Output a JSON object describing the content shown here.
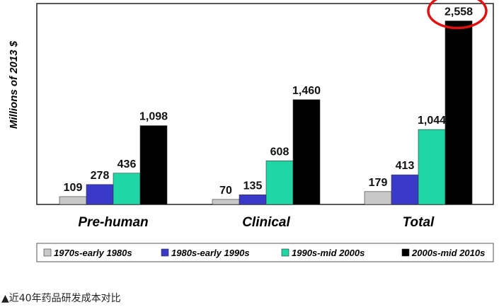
{
  "chart_data": {
    "type": "bar",
    "ylabel": "Millions of 2013 $",
    "categories": [
      "Pre-human",
      "Clinical",
      "Total"
    ],
    "series": [
      {
        "name": "1970s-early 1980s",
        "color": "#c8c8c8",
        "values": [
          109,
          70,
          179
        ]
      },
      {
        "name": "1980s-early 1990s",
        "color": "#3a3ac8",
        "values": [
          278,
          135,
          413
        ]
      },
      {
        "name": "1990s-mid 2000s",
        "color": "#1fd6a4",
        "values": [
          436,
          608,
          1044
        ]
      },
      {
        "name": "2000s-mid 2010s",
        "color": "#000000",
        "values": [
          1098,
          1460,
          2558
        ]
      }
    ],
    "data_labels": [
      [
        "109",
        "278",
        "436",
        "1,098"
      ],
      [
        "70",
        "135",
        "608",
        "1,460"
      ],
      [
        "179",
        "413",
        "1,044",
        "2,558"
      ]
    ],
    "ylim": [
      0,
      2800
    ],
    "grid": false,
    "legend_position": "bottom",
    "highlight": {
      "category": "Total",
      "series": "2000s-mid 2010s",
      "color": "#e01010"
    }
  },
  "caption": "▲近40年药品研发成本对比"
}
